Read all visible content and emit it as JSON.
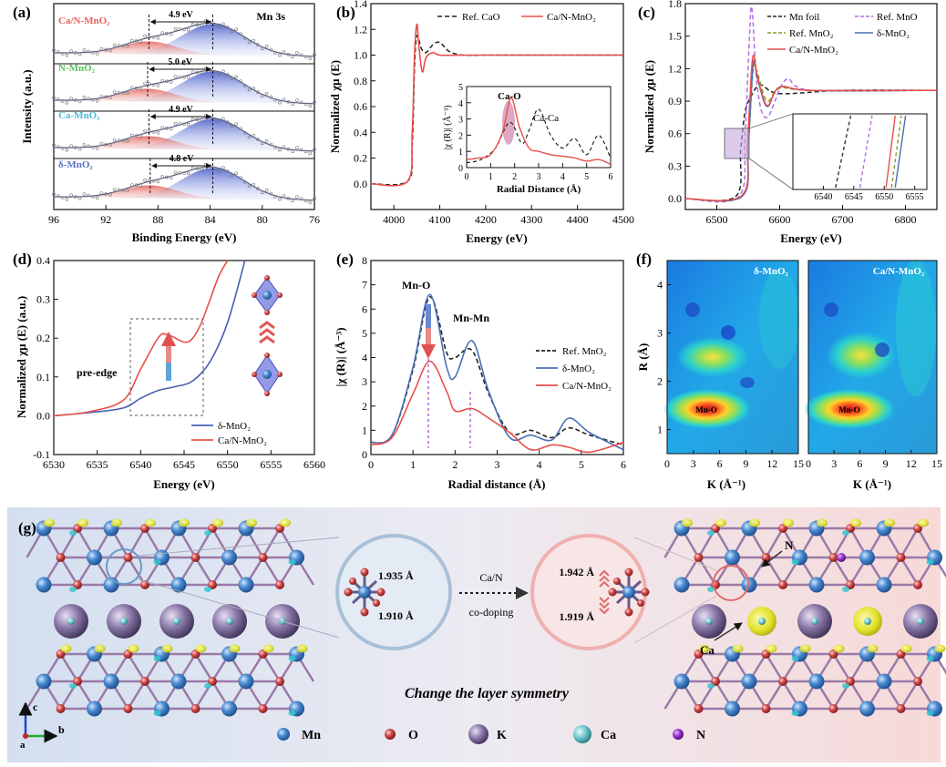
{
  "panel_labels": [
    "(a)",
    "(b)",
    "(c)",
    "(d)",
    "(e)",
    "(f)",
    "(g)"
  ],
  "panel_a": {
    "xlabel": "Binding Energy (eV)",
    "ylabel": "Intensity (a.u.)",
    "tag": "Mn 3s",
    "xticks": [
      "96",
      "92",
      "88",
      "84",
      "80",
      "76"
    ],
    "samples": [
      {
        "name": "Ca/N-MnO₂",
        "split": "4.9 eV",
        "color": "#e8605a"
      },
      {
        "name": "N-MnO₂",
        "split": "5.0 eV",
        "color": "#5cbf5c"
      },
      {
        "name": "Ca-MnO₂",
        "split": "4.9 eV",
        "color": "#4db8d8"
      },
      {
        "name": "δ-MnO₂",
        "split": "4.8 eV",
        "color": "#5a6fc4"
      }
    ]
  },
  "panel_b": {
    "xlabel": "Energy (eV)",
    "ylabel": "Normalized χμ (E)",
    "xticks": [
      "4000",
      "4100",
      "4200",
      "4300",
      "4400",
      "4500"
    ],
    "yticks": [
      "0.0",
      "0.2",
      "0.4",
      "0.6",
      "0.8",
      "1.0",
      "1.2",
      "1.4"
    ],
    "legend": [
      "Ref. CaO",
      "Ca/N-MnO₂"
    ],
    "inset": {
      "xlabel": "Radial Distance (Å)",
      "ylabel": "|χ (R)| (Å⁻³)",
      "xticks": [
        "0",
        "1",
        "2",
        "3",
        "4",
        "5",
        "6"
      ],
      "yticks": [
        "0",
        "1",
        "2",
        "3",
        "4",
        "5"
      ],
      "labels": [
        "Ca-O",
        "Ca-Ca"
      ]
    }
  },
  "panel_c": {
    "xlabel": "Energy (eV)",
    "ylabel": "Normalized χμ (E)",
    "xticks": [
      "6500",
      "6600",
      "6700",
      "6800"
    ],
    "yticks": [
      "0.0",
      "0.3",
      "0.6",
      "0.9",
      "1.2",
      "1.5",
      "1.8"
    ],
    "legend": [
      {
        "name": "Mn foil",
        "color": "#222222",
        "dash": true
      },
      {
        "name": "Ref. MnO",
        "color": "#b46ee6",
        "dash": true
      },
      {
        "name": "Ref. MnO₂",
        "color": "#8a9a2a",
        "dash": true
      },
      {
        "name": "δ-MnO₂",
        "color": "#4a6fb8",
        "dash": false
      },
      {
        "name": "Ca/N-MnO₂",
        "color": "#e8504a",
        "dash": false
      }
    ],
    "inset_xticks": [
      "6540",
      "6545",
      "6550",
      "6555"
    ]
  },
  "panel_d": {
    "xlabel": "Energy (eV)",
    "ylabel": "Normalized χμ (E) (a.u.)",
    "xticks": [
      "6530",
      "6535",
      "6540",
      "6545",
      "6550",
      "6555",
      "6560"
    ],
    "yticks": [
      "-0.1",
      "0.0",
      "0.1",
      "0.2",
      "0.3",
      "0.4"
    ],
    "annotation": "pre-edge",
    "legend": [
      {
        "name": "δ-MnO₂",
        "color": "#4a5fb0"
      },
      {
        "name": "Ca/N-MnO₂",
        "color": "#e8504a"
      }
    ]
  },
  "panel_e": {
    "xlabel": "Radial distance (Å)",
    "ylabel": "|χ (R)| (Å⁻³)",
    "xticks": [
      "0",
      "1",
      "2",
      "3",
      "4",
      "5",
      "6"
    ],
    "yticks": [
      "0",
      "1",
      "2",
      "3",
      "4",
      "5",
      "6",
      "7",
      "8"
    ],
    "labels": [
      "Mn-O",
      "Mn-Mn"
    ],
    "legend": [
      {
        "name": "Ref. MnO₂",
        "color": "#222222",
        "dash": true
      },
      {
        "name": "δ-MnO₂",
        "color": "#4a6fb8",
        "dash": false
      },
      {
        "name": "Ca/N-MnO₂",
        "color": "#e8504a",
        "dash": false
      }
    ]
  },
  "panel_f": {
    "xlabel": "K (Å⁻¹)",
    "ylabel": "R (Å)",
    "xticks_left": [
      "0",
      "3",
      "6",
      "9",
      "12",
      "15"
    ],
    "xticks_right": [
      "0",
      "3",
      "6",
      "9",
      "12",
      "15"
    ],
    "yticks": [
      "1",
      "2",
      "3",
      "4"
    ],
    "maps": [
      {
        "title": "δ-MnO₂",
        "spot": "Mn-O"
      },
      {
        "title": "Ca/N-MnO₂",
        "spot": "Mn-O"
      }
    ]
  },
  "panel_g": {
    "bond_left": [
      "1.935 Å",
      "1.910 Å"
    ],
    "bond_right": [
      "1.942 Å",
      "1.919 Å"
    ],
    "arrow_top": "Ca/N",
    "arrow_bottom": "co-doping",
    "caption": "Change the layer symmetry",
    "site_labels": [
      "N",
      "Ca"
    ],
    "axes": [
      "c",
      "b",
      "a"
    ],
    "legend": [
      {
        "name": "Mn",
        "color": "#3f7fc0"
      },
      {
        "name": "O",
        "color": "#d04848"
      },
      {
        "name": "K",
        "color": "#8a78a8"
      },
      {
        "name": "Ca",
        "color": "#5cc0c8"
      },
      {
        "name": "N",
        "color": "#9a30d0"
      }
    ]
  },
  "chart_data": [
    {
      "type": "line",
      "panel": "a",
      "xlabel": "Binding Energy (eV)",
      "ylabel": "Intensity (a.u.)",
      "xlim": [
        96,
        76
      ],
      "series": [
        {
          "name": "Ca/N-MnO₂",
          "peaks_eV": [
            88.7,
            83.8
          ],
          "splitting_eV": 4.9
        },
        {
          "name": "N-MnO₂",
          "peaks_eV": [
            88.8,
            83.8
          ],
          "splitting_eV": 5.0
        },
        {
          "name": "Ca-MnO₂",
          "peaks_eV": [
            88.7,
            83.8
          ],
          "splitting_eV": 4.9
        },
        {
          "name": "δ-MnO₂",
          "peaks_eV": [
            88.6,
            83.8
          ],
          "splitting_eV": 4.8
        }
      ]
    },
    {
      "type": "line",
      "panel": "b",
      "xlabel": "Energy (eV)",
      "ylabel": "Normalized χμ (E)",
      "xlim": [
        3950,
        4500
      ],
      "ylim": [
        -0.2,
        1.4
      ],
      "series": [
        {
          "name": "Ref. CaO",
          "x": [
            3950,
            4030,
            4040,
            4045,
            4050,
            4060,
            4070,
            4085,
            4100,
            4120,
            4150,
            4200,
            4300,
            4500
          ],
          "y": [
            0.0,
            0.02,
            0.3,
            0.9,
            1.15,
            1.05,
            1.02,
            1.08,
            1.1,
            1.03,
            1.0,
            1.0,
            1.0,
            1.0
          ]
        },
        {
          "name": "Ca/N-MnO₂",
          "x": [
            3950,
            4030,
            4040,
            4045,
            4050,
            4055,
            4062,
            4070,
            4085,
            4100,
            4150,
            4200,
            4300,
            4500
          ],
          "y": [
            0.0,
            0.02,
            0.4,
            1.0,
            1.24,
            1.05,
            0.87,
            0.98,
            1.02,
            1.0,
            1.0,
            1.0,
            1.0,
            1.0
          ]
        }
      ]
    },
    {
      "type": "line",
      "panel": "b-inset",
      "xlabel": "Radial Distance (Å)",
      "ylabel": "|χ (R)| (Å⁻³)",
      "xlim": [
        0,
        6
      ],
      "ylim": [
        0,
        5
      ],
      "series": [
        {
          "name": "Ref. CaO",
          "x": [
            0,
            0.6,
            1.2,
            1.8,
            2.3,
            2.6,
            3.0,
            3.5,
            4.0,
            4.5,
            5.0,
            5.5,
            6.0
          ],
          "y": [
            0.3,
            0.5,
            1.2,
            2.8,
            1.5,
            2.3,
            3.6,
            2.0,
            1.2,
            1.8,
            0.8,
            2.0,
            0.6
          ]
        },
        {
          "name": "Ca/N-MnO₂",
          "x": [
            0,
            0.5,
            1.0,
            1.5,
            1.85,
            2.2,
            2.6,
            3.0,
            3.5,
            4.0,
            4.5,
            5.0,
            5.5,
            6.0
          ],
          "y": [
            0.5,
            0.6,
            0.8,
            2.2,
            4.3,
            2.5,
            1.2,
            1.0,
            0.8,
            0.7,
            0.6,
            0.4,
            0.5,
            0.2
          ]
        }
      ]
    },
    {
      "type": "line",
      "panel": "c",
      "xlabel": "Energy (eV)",
      "ylabel": "Normalized χμ (E)",
      "xlim": [
        6450,
        6850
      ],
      "ylim": [
        -0.1,
        1.8
      ],
      "series": [
        {
          "name": "Mn foil",
          "x": [
            6450,
            6530,
            6538,
            6545,
            6555,
            6570,
            6600,
            6700,
            6850
          ],
          "y": [
            0.0,
            0.02,
            0.45,
            0.8,
            0.95,
            1.05,
            0.97,
            1.0,
            1.0
          ]
        },
        {
          "name": "Ref. MnO",
          "x": [
            6450,
            6535,
            6545,
            6552,
            6556,
            6565,
            6580,
            6610,
            6650,
            6850
          ],
          "y": [
            0.0,
            0.02,
            0.6,
            1.5,
            1.75,
            1.0,
            0.75,
            1.1,
            1.0,
            1.0
          ]
        },
        {
          "name": "Ref. MnO₂",
          "x": [
            6450,
            6540,
            6550,
            6558,
            6565,
            6580,
            6600,
            6650,
            6850
          ],
          "y": [
            0.0,
            0.02,
            0.5,
            1.2,
            1.15,
            0.9,
            1.02,
            1.0,
            1.0
          ]
        },
        {
          "name": "δ-MnO₂",
          "x": [
            6450,
            6540,
            6550,
            6558,
            6565,
            6580,
            6600,
            6650,
            6850
          ],
          "y": [
            0.0,
            0.02,
            0.5,
            1.25,
            1.1,
            0.85,
            1.03,
            1.0,
            1.0
          ]
        },
        {
          "name": "Ca/N-MnO₂",
          "x": [
            6450,
            6540,
            6549,
            6557,
            6565,
            6580,
            6600,
            6650,
            6850
          ],
          "y": [
            0.0,
            0.03,
            0.55,
            1.3,
            1.12,
            0.86,
            1.03,
            1.0,
            1.0
          ]
        }
      ]
    },
    {
      "type": "line",
      "panel": "d",
      "xlabel": "Energy (eV)",
      "ylabel": "Normalized χμ (E) (a.u.)",
      "xlim": [
        6530,
        6560
      ],
      "ylim": [
        -0.1,
        0.4
      ],
      "series": [
        {
          "name": "δ-MnO₂",
          "x": [
            6530,
            6534,
            6538,
            6540,
            6542,
            6544,
            6546,
            6548,
            6550,
            6552
          ],
          "y": [
            0.0,
            0.008,
            0.02,
            0.045,
            0.065,
            0.075,
            0.09,
            0.14,
            0.24,
            0.4
          ]
        },
        {
          "name": "Ca/N-MnO₂",
          "x": [
            6530,
            6534,
            6538,
            6540,
            6542,
            6543,
            6545,
            6546,
            6547,
            6548,
            6549,
            6550
          ],
          "y": [
            0.0,
            0.01,
            0.04,
            0.12,
            0.2,
            0.21,
            0.19,
            0.2,
            0.24,
            0.3,
            0.36,
            0.4
          ]
        }
      ]
    },
    {
      "type": "line",
      "panel": "e",
      "xlabel": "Radial distance (Å)",
      "ylabel": "|χ (R)| (Å⁻³)",
      "xlim": [
        0,
        6
      ],
      "ylim": [
        0,
        8
      ],
      "series": [
        {
          "name": "Ref. MnO₂",
          "x": [
            0,
            0.5,
            1.0,
            1.4,
            1.8,
            2.0,
            2.4,
            2.8,
            3.3,
            3.8,
            4.3,
            4.7,
            5.2,
            6.0
          ],
          "y": [
            0.5,
            0.8,
            3.5,
            6.5,
            4.2,
            4.0,
            4.3,
            2.5,
            0.9,
            1.0,
            0.7,
            1.1,
            0.8,
            0.4
          ]
        },
        {
          "name": "δ-MnO₂",
          "x": [
            0,
            0.5,
            1.0,
            1.4,
            1.8,
            2.0,
            2.4,
            2.8,
            3.3,
            3.8,
            4.3,
            4.7,
            5.2,
            6.0
          ],
          "y": [
            0.5,
            0.8,
            3.6,
            6.6,
            3.6,
            3.2,
            4.7,
            2.6,
            0.7,
            0.8,
            0.6,
            1.5,
            0.9,
            0.2
          ]
        },
        {
          "name": "Ca/N-MnO₂",
          "x": [
            0,
            0.5,
            1.0,
            1.4,
            1.8,
            2.0,
            2.4,
            2.8,
            3.3,
            3.8,
            4.3,
            4.7,
            5.2,
            6.0
          ],
          "y": [
            0.4,
            0.7,
            2.5,
            3.85,
            2.6,
            1.8,
            1.9,
            1.5,
            0.9,
            0.2,
            0.4,
            0.3,
            0.1,
            0.5
          ]
        }
      ]
    },
    {
      "type": "heatmap",
      "panel": "f",
      "xlabel": "K (Å⁻¹)",
      "ylabel": "R (Å)",
      "xlim": [
        0,
        15
      ],
      "ylim": [
        0.5,
        4.5
      ],
      "maps": [
        {
          "name": "δ-MnO₂",
          "max_at": {
            "k": 4.5,
            "R": 1.4,
            "label": "Mn-O"
          }
        },
        {
          "name": "Ca/N-MnO₂",
          "max_at": {
            "k": 4.5,
            "R": 1.4,
            "label": "Mn-O"
          }
        }
      ]
    }
  ]
}
